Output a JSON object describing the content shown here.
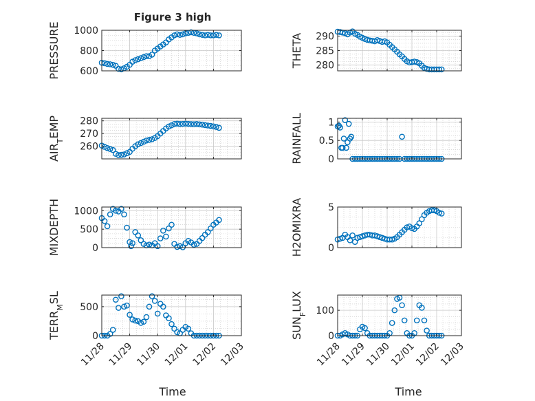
{
  "figure": {
    "title": "Figure 3 high",
    "xlabel": "Time"
  },
  "style": {
    "marker_color": "#0072BD",
    "axes_color": "#262626",
    "grid_color": "#c8c8c8"
  },
  "chart_data": [
    {
      "type": "scatter",
      "ylabel": "PRESSURE",
      "ylim": [
        600,
        1000
      ],
      "yticks": [
        "600",
        "800",
        "1000"
      ],
      "ytick_values": [
        600,
        800,
        1000
      ],
      "xlim": [
        0,
        5
      ],
      "xticks": [
        "11/28",
        "11/29",
        "11/30",
        "12/01",
        "12/02",
        "12/03"
      ],
      "grid": true,
      "x": [
        0.0,
        0.1,
        0.2,
        0.3,
        0.4,
        0.5,
        0.6,
        0.7,
        0.8,
        0.9,
        1.0,
        1.1,
        1.2,
        1.3,
        1.4,
        1.5,
        1.6,
        1.7,
        1.8,
        1.9,
        2.0,
        2.1,
        2.2,
        2.3,
        2.4,
        2.5,
        2.6,
        2.7,
        2.8,
        2.9,
        3.0,
        3.1,
        3.2,
        3.3,
        3.4,
        3.5,
        3.6,
        3.7,
        3.8,
        3.9,
        4.0,
        4.1,
        4.2
      ],
      "y": [
        680,
        675,
        668,
        665,
        660,
        650,
        620,
        615,
        625,
        640,
        660,
        690,
        705,
        715,
        725,
        735,
        745,
        745,
        760,
        800,
        820,
        840,
        860,
        880,
        910,
        930,
        950,
        960,
        955,
        960,
        970,
        975,
        980,
        975,
        970,
        960,
        955,
        950,
        955,
        950,
        950,
        955,
        950
      ]
    },
    {
      "type": "scatter",
      "ylabel": "THETA",
      "ylim": [
        278,
        292
      ],
      "yticks": [
        "280",
        "285",
        "290"
      ],
      "ytick_values": [
        280,
        285,
        290
      ],
      "xlim": [
        0,
        5
      ],
      "grid": true,
      "x": [
        0.0,
        0.1,
        0.2,
        0.3,
        0.4,
        0.5,
        0.6,
        0.7,
        0.8,
        0.9,
        1.0,
        1.1,
        1.2,
        1.3,
        1.4,
        1.5,
        1.6,
        1.7,
        1.8,
        1.9,
        2.0,
        2.1,
        2.2,
        2.3,
        2.4,
        2.5,
        2.6,
        2.7,
        2.8,
        2.9,
        3.0,
        3.1,
        3.2,
        3.3,
        3.4,
        3.5,
        3.6,
        3.7,
        3.8,
        3.9,
        4.0,
        4.1,
        4.2
      ],
      "y": [
        291.5,
        291.4,
        291.2,
        291.0,
        290.6,
        291.2,
        291.6,
        290.8,
        290.4,
        289.8,
        289.4,
        289.0,
        288.7,
        288.5,
        288.4,
        288.2,
        288.6,
        288.3,
        288.0,
        288.2,
        287.8,
        287.0,
        286.2,
        285.4,
        284.6,
        283.7,
        283.0,
        282.1,
        281.3,
        280.9,
        281.0,
        281.2,
        281.0,
        280.6,
        279.8,
        279.0,
        278.7,
        278.5,
        278.5,
        278.5,
        278.5,
        278.5,
        278.5
      ]
    },
    {
      "type": "scatter",
      "ylabel": "AIR_TEMP",
      "ylim": [
        250,
        282
      ],
      "yticks": [
        "260",
        "270",
        "280"
      ],
      "ytick_values": [
        260,
        270,
        280
      ],
      "xlim": [
        0,
        5
      ],
      "grid": true,
      "x": [
        0.0,
        0.1,
        0.2,
        0.3,
        0.4,
        0.5,
        0.6,
        0.7,
        0.8,
        0.9,
        1.0,
        1.1,
        1.2,
        1.3,
        1.4,
        1.5,
        1.6,
        1.7,
        1.8,
        1.9,
        2.0,
        2.1,
        2.2,
        2.3,
        2.4,
        2.5,
        2.6,
        2.7,
        2.8,
        2.9,
        3.0,
        3.1,
        3.2,
        3.3,
        3.4,
        3.5,
        3.6,
        3.7,
        3.8,
        3.9,
        4.0,
        4.1,
        4.2
      ],
      "y": [
        260.5,
        259.5,
        258.5,
        257.8,
        257.0,
        254.0,
        253.0,
        253.2,
        253.5,
        254.5,
        255.5,
        258.0,
        260.0,
        261.5,
        262.5,
        263.5,
        264.5,
        265.0,
        265.5,
        266.5,
        268.0,
        270.0,
        272.0,
        274.0,
        275.5,
        276.5,
        277.5,
        277.8,
        277.5,
        277.6,
        277.8,
        277.6,
        277.4,
        277.3,
        277.5,
        277.2,
        277.0,
        276.6,
        276.3,
        276.0,
        275.6,
        275.2,
        274.5
      ]
    },
    {
      "type": "scatter",
      "ylabel": "RAINFALL",
      "ylim": [
        0,
        1.1
      ],
      "yticks": [
        "0",
        "0.5",
        "1"
      ],
      "ytick_values": [
        0,
        0.5,
        1
      ],
      "xlim": [
        0,
        5
      ],
      "grid": true,
      "x": [
        0.0,
        0.05,
        0.1,
        0.15,
        0.2,
        0.25,
        0.3,
        0.35,
        0.4,
        0.45,
        0.5,
        0.55,
        0.6,
        0.7,
        0.8,
        0.9,
        1.0,
        1.1,
        1.2,
        1.3,
        1.4,
        1.5,
        1.6,
        1.7,
        1.8,
        1.9,
        2.0,
        2.1,
        2.2,
        2.3,
        2.4,
        2.5,
        2.6,
        2.7,
        2.8,
        2.9,
        3.0,
        3.1,
        3.2,
        3.3,
        3.4,
        3.5,
        3.6,
        3.7,
        3.8,
        3.9,
        4.0,
        4.1,
        4.2
      ],
      "y": [
        0.88,
        0.9,
        0.85,
        0.3,
        0.3,
        0.55,
        1.05,
        0.3,
        0.45,
        0.95,
        0.55,
        0.6,
        0.0,
        0.0,
        0.0,
        0.0,
        0.0,
        0.0,
        0.0,
        0.0,
        0.0,
        0.0,
        0.0,
        0.0,
        0.0,
        0.0,
        0.0,
        0.0,
        0.0,
        0.0,
        0.0,
        0.0,
        0.6,
        0.0,
        0.0,
        0.0,
        0.0,
        0.0,
        0.0,
        0.0,
        0.0,
        0.0,
        0.0,
        0.0,
        0.0,
        0.0,
        0.0,
        0.0,
        0.0
      ]
    },
    {
      "type": "scatter",
      "ylabel": "MIXDEPTH",
      "ylim": [
        0,
        1100
      ],
      "yticks": [
        "0",
        "500",
        "1000"
      ],
      "ytick_values": [
        0,
        500,
        1000
      ],
      "xlim": [
        0,
        5
      ],
      "grid": true,
      "x": [
        0.0,
        0.1,
        0.2,
        0.3,
        0.4,
        0.5,
        0.6,
        0.7,
        0.8,
        0.9,
        1.0,
        1.05,
        1.1,
        1.2,
        1.3,
        1.4,
        1.5,
        1.6,
        1.7,
        1.8,
        1.9,
        2.0,
        2.1,
        2.2,
        2.3,
        2.4,
        2.5,
        2.6,
        2.7,
        2.8,
        2.9,
        3.0,
        3.1,
        3.2,
        3.3,
        3.4,
        3.5,
        3.6,
        3.7,
        3.8,
        3.9,
        4.0,
        4.1,
        4.2
      ],
      "y": [
        800,
        720,
        580,
        900,
        1050,
        1000,
        980,
        1050,
        900,
        540,
        150,
        40,
        120,
        420,
        330,
        200,
        100,
        60,
        80,
        60,
        120,
        40,
        250,
        460,
        300,
        520,
        620,
        100,
        20,
        40,
        10,
        120,
        180,
        140,
        80,
        100,
        180,
        260,
        350,
        420,
        520,
        620,
        680,
        750
      ]
    },
    {
      "type": "scatter",
      "ylabel": "H2OMIXRA",
      "ylim": [
        0,
        5
      ],
      "yticks": [
        "0",
        "5"
      ],
      "ytick_values": [
        0,
        5
      ],
      "xlim": [
        0,
        5
      ],
      "grid": true,
      "x": [
        0.0,
        0.1,
        0.2,
        0.3,
        0.4,
        0.5,
        0.6,
        0.7,
        0.8,
        0.9,
        1.0,
        1.1,
        1.2,
        1.3,
        1.4,
        1.5,
        1.6,
        1.7,
        1.8,
        1.9,
        2.0,
        2.1,
        2.2,
        2.3,
        2.4,
        2.5,
        2.6,
        2.7,
        2.8,
        2.9,
        3.0,
        3.1,
        3.2,
        3.3,
        3.4,
        3.5,
        3.6,
        3.7,
        3.8,
        3.9,
        4.0,
        4.1,
        4.2
      ],
      "y": [
        1.0,
        1.1,
        1.2,
        1.6,
        1.3,
        0.9,
        1.5,
        0.7,
        1.2,
        1.3,
        1.4,
        1.5,
        1.6,
        1.6,
        1.5,
        1.5,
        1.4,
        1.3,
        1.2,
        1.1,
        1.0,
        1.0,
        1.0,
        1.1,
        1.3,
        1.6,
        1.9,
        2.2,
        2.5,
        2.6,
        2.4,
        2.3,
        2.6,
        3.0,
        3.5,
        4.0,
        4.3,
        4.5,
        4.6,
        4.6,
        4.5,
        4.3,
        4.2
      ]
    },
    {
      "type": "scatter",
      "ylabel": "TERR_MSL",
      "ylim": [
        0,
        700
      ],
      "yticks": [
        "0",
        "500"
      ],
      "ytick_values": [
        0,
        500
      ],
      "xlim": [
        0,
        5
      ],
      "grid": true,
      "x": [
        0.0,
        0.1,
        0.2,
        0.3,
        0.4,
        0.5,
        0.6,
        0.7,
        0.8,
        0.9,
        1.0,
        1.1,
        1.2,
        1.3,
        1.4,
        1.5,
        1.6,
        1.7,
        1.8,
        1.9,
        2.0,
        2.1,
        2.2,
        2.3,
        2.4,
        2.5,
        2.6,
        2.7,
        2.8,
        2.9,
        3.0,
        3.1,
        3.2,
        3.3,
        3.4,
        3.5,
        3.6,
        3.7,
        3.8,
        3.9,
        4.0,
        4.1,
        4.2
      ],
      "y": [
        0,
        0,
        0,
        30,
        100,
        620,
        480,
        680,
        500,
        520,
        360,
        280,
        260,
        250,
        220,
        240,
        320,
        500,
        680,
        600,
        380,
        550,
        500,
        350,
        300,
        200,
        120,
        60,
        40,
        100,
        150,
        120,
        40,
        0,
        0,
        0,
        0,
        0,
        0,
        0,
        0,
        0,
        0
      ]
    },
    {
      "type": "scatter",
      "ylabel": "SUN_FLUX",
      "ylim": [
        0,
        160
      ],
      "yticks": [
        "0",
        "100"
      ],
      "ytick_values": [
        0,
        100
      ],
      "xlim": [
        0,
        5
      ],
      "grid": true,
      "x": [
        0.0,
        0.1,
        0.2,
        0.3,
        0.4,
        0.5,
        0.6,
        0.7,
        0.8,
        0.9,
        1.0,
        1.1,
        1.2,
        1.3,
        1.4,
        1.5,
        1.6,
        1.7,
        1.8,
        1.9,
        2.0,
        2.1,
        2.2,
        2.3,
        2.4,
        2.5,
        2.6,
        2.7,
        2.8,
        2.9,
        3.0,
        3.1,
        3.2,
        3.3,
        3.4,
        3.5,
        3.6,
        3.7,
        3.8,
        3.9,
        4.0,
        4.1,
        4.2
      ],
      "y": [
        0,
        0,
        5,
        10,
        5,
        0,
        0,
        0,
        0,
        25,
        35,
        30,
        10,
        0,
        0,
        0,
        0,
        0,
        0,
        0,
        0,
        10,
        50,
        100,
        145,
        150,
        120,
        60,
        10,
        0,
        0,
        10,
        60,
        120,
        110,
        60,
        20,
        0,
        0,
        0,
        0,
        0,
        0
      ]
    }
  ]
}
